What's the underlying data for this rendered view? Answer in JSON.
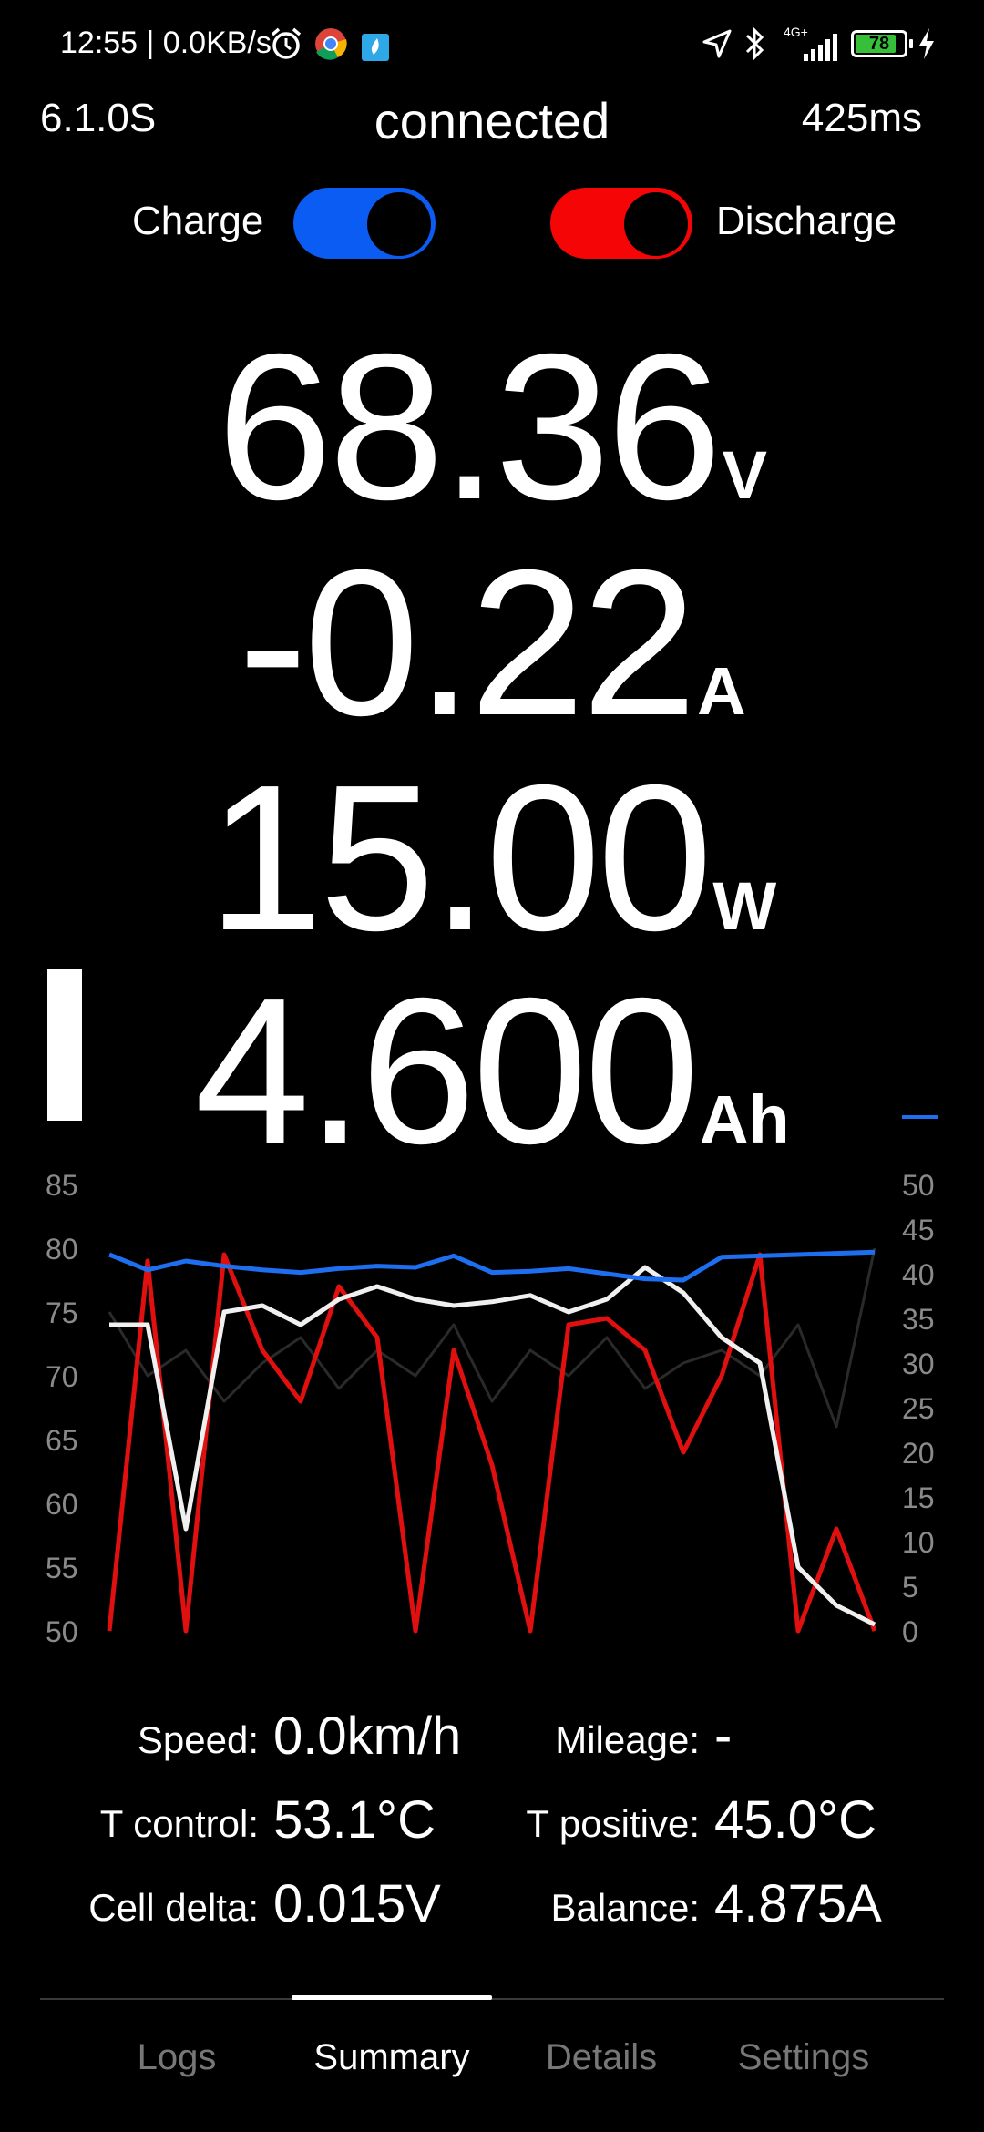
{
  "status_bar": {
    "time_speed": "12:55 | 0.0KB/s",
    "network": "4G+",
    "battery_percent": "78",
    "icons": [
      "alarm-icon",
      "chrome-icon",
      "app-icon",
      "location-arrow-icon",
      "bluetooth-icon",
      "signal-icon",
      "battery-icon",
      "charging-bolt-icon"
    ]
  },
  "header": {
    "version": "6.1.0S",
    "status": "connected",
    "ping": "425ms"
  },
  "toggles": {
    "charge_label": "Charge",
    "charge_on": true,
    "charge_color": "#0a5cf2",
    "discharge_label": "Discharge",
    "discharge_on": true,
    "discharge_color": "#f50505"
  },
  "readings": {
    "voltage": {
      "value": "68.36",
      "unit": "V"
    },
    "current": {
      "value": "-0.22",
      "unit": "A"
    },
    "power": {
      "value": "15.00",
      "unit": "W"
    },
    "capacity": {
      "value": "4.600",
      "unit": "Ah"
    }
  },
  "chart_data": {
    "type": "line",
    "title": "",
    "xlabel": "",
    "ylabel": "",
    "grid": false,
    "y_left": {
      "ticks": [
        "85",
        "80",
        "75",
        "70",
        "65",
        "60",
        "55",
        "50"
      ],
      "ylim": [
        50,
        85
      ]
    },
    "y_right": {
      "ticks": [
        "50",
        "45",
        "40",
        "35",
        "30",
        "25",
        "20",
        "15",
        "10",
        "5",
        "0"
      ],
      "ylim": [
        0,
        50
      ]
    },
    "x": [
      0,
      5,
      10,
      15,
      20,
      25,
      30,
      35,
      40,
      45,
      50,
      55,
      60,
      65,
      70,
      75,
      80,
      85,
      90,
      95,
      100
    ],
    "series": [
      {
        "axis": "left",
        "color": "#1e6ef0",
        "values": [
          79.5,
          78.3,
          79,
          78.6,
          78.3,
          78.1,
          78.4,
          78.6,
          78.5,
          79.4,
          78.1,
          78.2,
          78.4,
          78.0,
          77.6,
          77.5,
          79.3,
          79.4,
          79.5,
          79.6,
          79.7
        ]
      },
      {
        "axis": "left",
        "color": "#e01010",
        "values": [
          50,
          79,
          50,
          79.5,
          72,
          68,
          77,
          73,
          50,
          72,
          63,
          50,
          74,
          74.5,
          72,
          64,
          70,
          79.5,
          50,
          58,
          50
        ]
      },
      {
        "axis": "left",
        "color": "#f0f0f0",
        "values": [
          74,
          74,
          58,
          75,
          75.5,
          74,
          76,
          77,
          76,
          75.5,
          75.8,
          76.3,
          75,
          76,
          78.5,
          76.5,
          73,
          71,
          55,
          52,
          50.5
        ]
      },
      {
        "axis": "left",
        "color": "#2a2a2a",
        "values": [
          75,
          70,
          72,
          68,
          71,
          73,
          69,
          72,
          70,
          74,
          68,
          72,
          70,
          73,
          69,
          71,
          72,
          70,
          74,
          66,
          80
        ]
      }
    ]
  },
  "stats": {
    "speed_label": "Speed:",
    "speed_value": "0.0km/h",
    "mileage_label": "Mileage:",
    "mileage_value": "-",
    "tcontrol_label": "T control:",
    "tcontrol_value": "53.1°C",
    "tpositive_label": "T positive:",
    "tpositive_value": "45.0°C",
    "celldelta_label": "Cell delta:",
    "celldelta_value": "0.015V",
    "balance_label": "Balance:",
    "balance_value": "4.875A"
  },
  "nav": {
    "tabs": [
      "Logs",
      "Summary",
      "Details",
      "Settings"
    ],
    "active": "Summary"
  }
}
